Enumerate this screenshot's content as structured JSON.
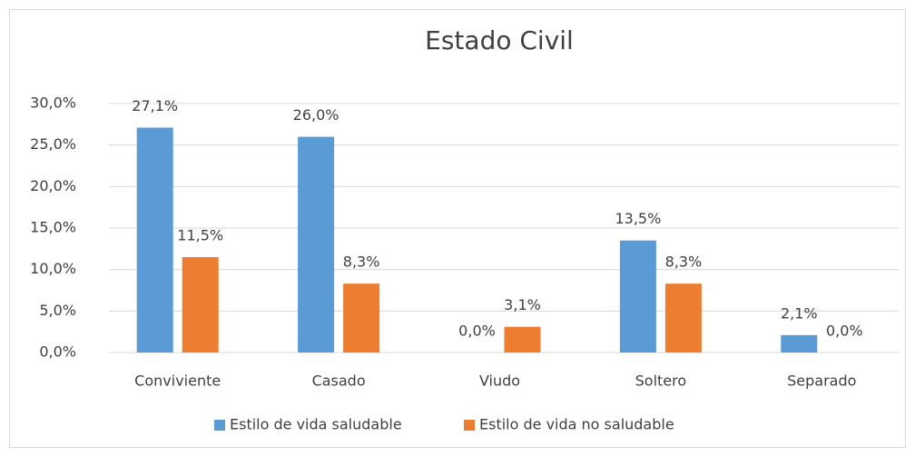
{
  "chart_data": {
    "type": "bar",
    "title": "Estado Civil",
    "categories": [
      "Conviviente",
      "Casado",
      "Viudo",
      "Soltero",
      "Separado"
    ],
    "series": [
      {
        "name": "Estilo de vida saludable",
        "color": "#5b9bd5",
        "values": [
          27.1,
          26.0,
          0.0,
          13.5,
          2.1
        ],
        "value_labels": [
          "27,1%",
          "26,0%",
          "0,0%",
          "13,5%",
          "2,1%"
        ]
      },
      {
        "name": "Estilo de vida no saludable",
        "color": "#ed7d31",
        "values": [
          11.5,
          8.3,
          3.1,
          8.3,
          0.0
        ],
        "value_labels": [
          "11,5%",
          "8,3%",
          "3,1%",
          "8,3%",
          "0,0%"
        ]
      }
    ],
    "ylim": [
      0,
      30
    ],
    "yticks": [
      {
        "value": 0,
        "label": "0,0%"
      },
      {
        "value": 5,
        "label": "5,0%"
      },
      {
        "value": 10,
        "label": "10,0%"
      },
      {
        "value": 15,
        "label": "15,0%"
      },
      {
        "value": 20,
        "label": "20,0%"
      },
      {
        "value": 25,
        "label": "25,0%"
      },
      {
        "value": 30,
        "label": "30,0%"
      }
    ],
    "grid": true,
    "legend": "bottom"
  }
}
